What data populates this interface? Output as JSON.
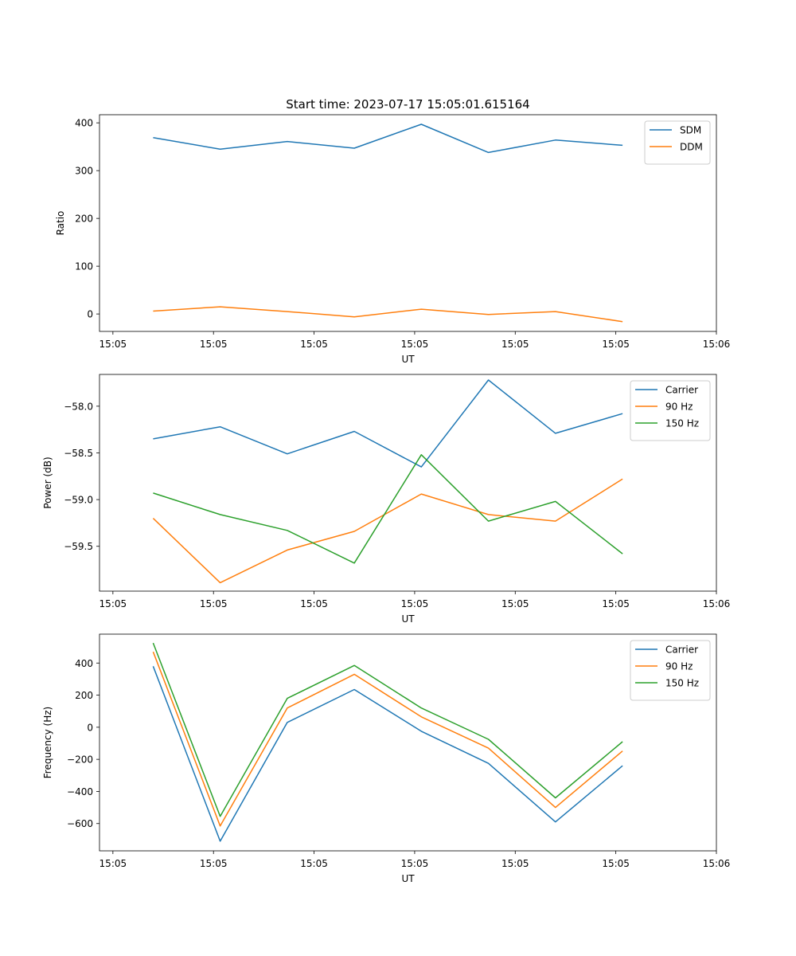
{
  "figure_title": "Start time: 2023-07-17 15:05:01.615164",
  "colors": {
    "blue": "#1f77b4",
    "orange": "#ff7f0e",
    "green": "#2ca02c"
  },
  "chart_data": [
    {
      "type": "line",
      "xlabel": "UT",
      "ylabel": "Ratio",
      "x": [
        1,
        2,
        3,
        4,
        5,
        6,
        7,
        8
      ],
      "xlim": [
        0.2,
        9.4
      ],
      "x_ticks": [
        0.4,
        1.9,
        3.4,
        4.9,
        6.4,
        7.9,
        9.4
      ],
      "x_tick_labels": [
        "15:05",
        "15:05",
        "15:05",
        "15:05",
        "15:05",
        "15:05",
        "15:06"
      ],
      "ylim": [
        -36.5,
        417
      ],
      "y_ticks": [
        0,
        100,
        200,
        300,
        400
      ],
      "y_tick_labels": [
        "0",
        "100",
        "200",
        "300",
        "400"
      ],
      "legend_position": "top-right",
      "series": [
        {
          "name": "SDM",
          "color": "#1f77b4",
          "values": [
            369,
            345,
            361,
            347,
            397,
            338,
            364,
            353
          ]
        },
        {
          "name": "DDM",
          "color": "#ff7f0e",
          "values": [
            6,
            15,
            5,
            -6,
            10,
            -1,
            5,
            -16
          ]
        }
      ]
    },
    {
      "type": "line",
      "xlabel": "UT",
      "ylabel": "Power (dB)",
      "x": [
        1,
        2,
        3,
        4,
        5,
        6,
        7,
        8
      ],
      "xlim": [
        0.2,
        9.4
      ],
      "x_ticks": [
        0.4,
        1.9,
        3.4,
        4.9,
        6.4,
        7.9,
        9.4
      ],
      "x_tick_labels": [
        "15:05",
        "15:05",
        "15:05",
        "15:05",
        "15:05",
        "15:05",
        "15:06"
      ],
      "ylim": [
        -59.98,
        -57.66
      ],
      "y_ticks": [
        -58.0,
        -58.5,
        -59.0,
        -59.5
      ],
      "y_tick_labels": [
        "−58.0",
        "−58.5",
        "−59.0",
        "−59.5"
      ],
      "legend_position": "top-right",
      "series": [
        {
          "name": "Carrier",
          "color": "#1f77b4",
          "values": [
            -58.35,
            -58.22,
            -58.51,
            -58.27,
            -58.65,
            -57.72,
            -58.29,
            -58.08
          ]
        },
        {
          "name": "90 Hz",
          "color": "#ff7f0e",
          "values": [
            -59.2,
            -59.89,
            -59.54,
            -59.34,
            -58.94,
            -59.16,
            -59.23,
            -58.78
          ]
        },
        {
          "name": "150 Hz",
          "color": "#2ca02c",
          "values": [
            -58.93,
            -59.16,
            -59.33,
            -59.68,
            -58.52,
            -59.23,
            -59.02,
            -59.58
          ]
        }
      ]
    },
    {
      "type": "line",
      "xlabel": "UT",
      "ylabel": "Frequency (Hz)",
      "x": [
        1,
        2,
        3,
        4,
        5,
        6,
        7,
        8
      ],
      "xlim": [
        0.2,
        9.4
      ],
      "x_ticks": [
        0.4,
        1.9,
        3.4,
        4.9,
        6.4,
        7.9,
        9.4
      ],
      "x_tick_labels": [
        "15:05",
        "15:05",
        "15:05",
        "15:05",
        "15:05",
        "15:05",
        "15:06"
      ],
      "ylim": [
        -770,
        580
      ],
      "y_ticks": [
        400,
        200,
        0,
        -200,
        -400,
        -600
      ],
      "y_tick_labels": [
        "400",
        "200",
        "0",
        "−200",
        "−400",
        "−600"
      ],
      "legend_position": "top-right",
      "series": [
        {
          "name": "Carrier",
          "color": "#1f77b4",
          "values": [
            380,
            -710,
            30,
            235,
            -25,
            -225,
            -590,
            -240
          ]
        },
        {
          "name": "90 Hz",
          "color": "#ff7f0e",
          "values": [
            470,
            -615,
            120,
            330,
            65,
            -130,
            -500,
            -148
          ]
        },
        {
          "name": "150 Hz",
          "color": "#2ca02c",
          "values": [
            525,
            -555,
            180,
            385,
            120,
            -75,
            -440,
            -90
          ]
        }
      ]
    }
  ]
}
